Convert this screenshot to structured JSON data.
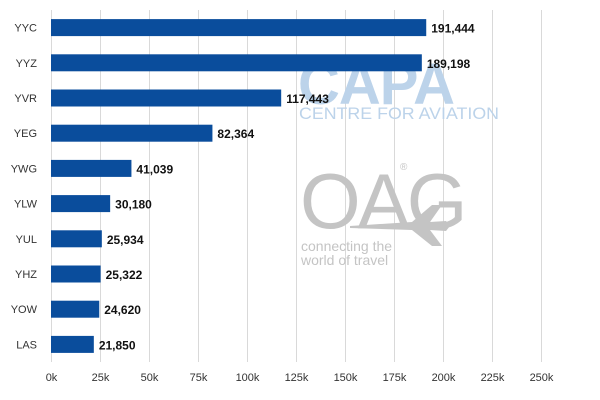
{
  "chart_data": {
    "type": "bar",
    "orientation": "horizontal",
    "categories": [
      "YYC",
      "YYZ",
      "YVR",
      "YEG",
      "YWG",
      "YLW",
      "YUL",
      "YHZ",
      "YOW",
      "LAS"
    ],
    "values": [
      191444,
      189198,
      117443,
      82364,
      41039,
      30180,
      25934,
      25322,
      24620,
      21850
    ],
    "value_labels": [
      "191,444",
      "189,198",
      "117,443",
      "82,364",
      "41,039",
      "30,180",
      "25,934",
      "25,322",
      "24,620",
      "21,850"
    ],
    "xlim": [
      0,
      250000
    ],
    "xticks": [
      0,
      25000,
      50000,
      75000,
      100000,
      125000,
      150000,
      175000,
      200000,
      225000,
      250000
    ],
    "xtick_labels": [
      "0k",
      "25k",
      "50k",
      "75k",
      "100k",
      "125k",
      "150k",
      "175k",
      "200k",
      "225k",
      "250k"
    ],
    "title": "",
    "xlabel": "",
    "ylabel": "",
    "grid": "vertical",
    "legend": "none",
    "bar_color": "#0a4d9c"
  },
  "watermarks": {
    "capa": {
      "logo": "CAPA",
      "subtitle": "CENTRE FOR AVIATION",
      "color": "#bcd3ea"
    },
    "oag": {
      "logo": "OAG",
      "tagline_line1": "connecting the",
      "tagline_line2": "world of travel",
      "registered": "®",
      "icon": "airplane-icon",
      "color": "#c4c4c4"
    }
  }
}
